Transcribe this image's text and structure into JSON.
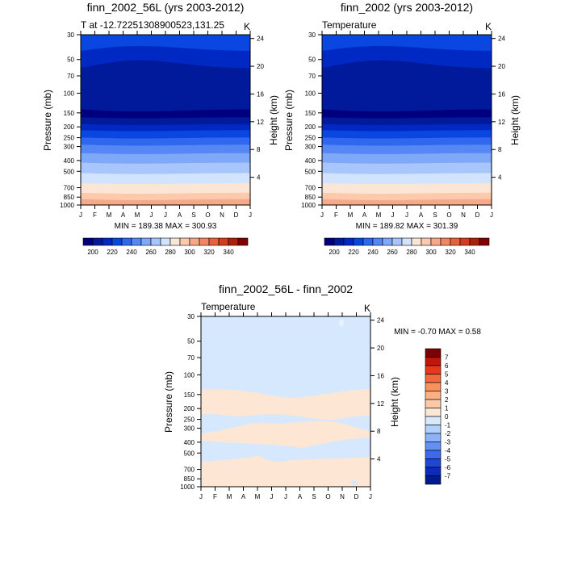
{
  "chart_data": [
    {
      "type": "heatmap",
      "title": "finn_2002_56L (yrs 2003-2012)",
      "subtitle_left": "T at -12.72251308900523,131.25",
      "subtitle_right": "K",
      "ylabel": "Pressure (mb)",
      "ylabel_right": "Height (km)",
      "x_ticks": [
        "J",
        "F",
        "M",
        "A",
        "M",
        "J",
        "J",
        "A",
        "S",
        "O",
        "N",
        "D",
        "J"
      ],
      "y_ticks": [
        "30",
        "50",
        "70",
        "100",
        "150",
        "200",
        "250",
        "300",
        "400",
        "500",
        "700",
        "850",
        "1000"
      ],
      "y_ticks_right": [
        "24",
        "20",
        "16",
        "12",
        "8",
        "4"
      ],
      "stats": "MIN = 189.38 MAX = 300.93",
      "colorbar": {
        "labels": [
          "200",
          "220",
          "240",
          "260",
          "280",
          "300",
          "320",
          "340"
        ],
        "colors": [
          "#00007f",
          "#001a9c",
          "#0029c4",
          "#0a46e0",
          "#2f68ef",
          "#5588f5",
          "#80a8f8",
          "#a8c6fb",
          "#d2e4fd",
          "#fbe6d6",
          "#fbc9ac",
          "#f7a888",
          "#f28563",
          "#e8603c",
          "#d63a1f",
          "#ad1f0c",
          "#7f0000"
        ]
      },
      "band_colors": [
        "#0a46e0",
        "#0029c4",
        "#001a9c",
        "#00007f",
        "#001a9c",
        "#0029c4",
        "#0a46e0",
        "#2f68ef",
        "#5588f5",
        "#80a8f8",
        "#a8c6fb",
        "#d2e4fd",
        "#fbe6d6",
        "#fbc9ac",
        "#f7a888"
      ]
    },
    {
      "type": "heatmap",
      "title": "finn_2002 (yrs 2003-2012)",
      "subtitle_left": "Temperature",
      "subtitle_right": "K",
      "ylabel": "Pressure (mb)",
      "ylabel_right": "Height (km)",
      "x_ticks": [
        "J",
        "F",
        "M",
        "A",
        "M",
        "J",
        "J",
        "A",
        "S",
        "O",
        "N",
        "D",
        "J"
      ],
      "y_ticks": [
        "30",
        "50",
        "70",
        "100",
        "150",
        "200",
        "250",
        "300",
        "400",
        "500",
        "700",
        "850",
        "1000"
      ],
      "y_ticks_right": [
        "24",
        "20",
        "16",
        "12",
        "8",
        "4"
      ],
      "stats": "MIN = 189.82 MAX = 301.39",
      "colorbar": {
        "labels": [
          "200",
          "220",
          "240",
          "260",
          "280",
          "300",
          "320",
          "340"
        ],
        "colors": [
          "#00007f",
          "#001a9c",
          "#0029c4",
          "#0a46e0",
          "#2f68ef",
          "#5588f5",
          "#80a8f8",
          "#a8c6fb",
          "#d2e4fd",
          "#fbe6d6",
          "#fbc9ac",
          "#f7a888",
          "#f28563",
          "#e8603c",
          "#d63a1f",
          "#ad1f0c",
          "#7f0000"
        ]
      },
      "band_colors": [
        "#0a46e0",
        "#0029c4",
        "#001a9c",
        "#00007f",
        "#001a9c",
        "#0029c4",
        "#0a46e0",
        "#2f68ef",
        "#5588f5",
        "#80a8f8",
        "#a8c6fb",
        "#d2e4fd",
        "#fbe6d6",
        "#fbc9ac",
        "#f7a888"
      ]
    },
    {
      "type": "heatmap",
      "title": "finn_2002_56L - finn_2002",
      "subtitle_left": "Temperature",
      "subtitle_right": "K",
      "ylabel": "Pressure (mb)",
      "ylabel_right": "Height (km)",
      "x_ticks": [
        "J",
        "F",
        "M",
        "A",
        "M",
        "J",
        "J",
        "A",
        "S",
        "O",
        "N",
        "D",
        "J"
      ],
      "y_ticks": [
        "30",
        "50",
        "70",
        "100",
        "150",
        "200",
        "250",
        "300",
        "400",
        "500",
        "700",
        "850",
        "1000"
      ],
      "y_ticks_right": [
        "24",
        "20",
        "16",
        "12",
        "8",
        "4"
      ],
      "stats": "MIN =  -0.70 MAX =   0.58",
      "colorbar": {
        "labels": [
          "7",
          "6",
          "5",
          "4",
          "3",
          "2",
          "1",
          "0",
          "-1",
          "-2",
          "-3",
          "-4",
          "-5",
          "-6",
          "-7"
        ],
        "colors": [
          "#7f0000",
          "#c0150a",
          "#e8381c",
          "#f26a3c",
          "#f7925e",
          "#faaf85",
          "#fcc9a6",
          "#fde6d3",
          "#d6e8fd",
          "#b3cffb",
          "#8db2f8",
          "#6691f4",
          "#3c6aee",
          "#1f46d6",
          "#0a2cb8",
          "#001a90"
        ]
      },
      "band_values": [
        "-1",
        "0",
        "-1",
        "0",
        "-1",
        "0",
        "-1",
        "0"
      ]
    }
  ]
}
